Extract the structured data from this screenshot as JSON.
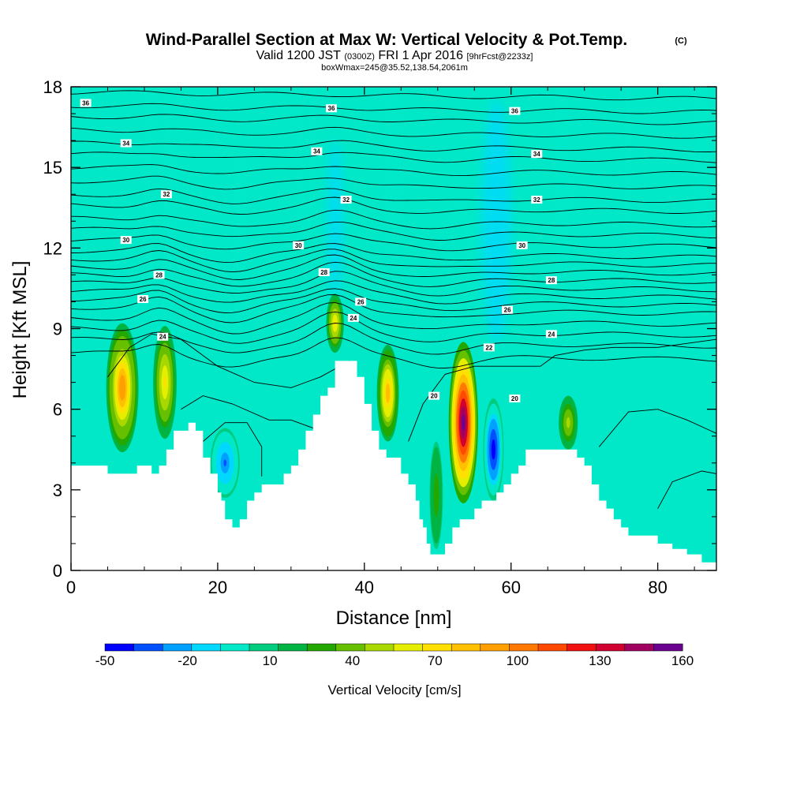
{
  "title": "Wind-Parallel Section at Max W: Vertical Velocity & Pot.Temp.",
  "title_mark": "(C)",
  "valid_main": "Valid 1200 JST",
  "valid_z": "(0300Z)",
  "valid_date": "FRI 1 Apr 2016",
  "valid_fcst": "[9hrFcst@2233z]",
  "subtitle2": "boxWmax=245@35.52,138.54,2061m",
  "colors": {
    "background_bin": "#00e8c8",
    "terrain": "#ffffff",
    "contour_line": "#000000"
  },
  "chart_data": {
    "type": "heatmap",
    "xlabel": "Distance [nm]",
    "ylabel": "Height [Kft MSL]",
    "xlim": [
      0,
      88
    ],
    "ylim": [
      0,
      18
    ],
    "x_ticks": [
      "0",
      "20",
      "40",
      "60",
      "80"
    ],
    "y_ticks": [
      "0",
      "3",
      "6",
      "9",
      "12",
      "15",
      "18"
    ],
    "colorbar": {
      "label": "Vertical Velocity [cm/s]",
      "tick_labels": [
        "-50",
        "-20",
        "10",
        "40",
        "70",
        "100",
        "130",
        "160"
      ],
      "bins": [
        "#0000ff",
        "#0050ff",
        "#00a0ff",
        "#00d8ff",
        "#00e8c8",
        "#00cc80",
        "#00b444",
        "#22a800",
        "#66c000",
        "#a8d800",
        "#e6ee00",
        "#ffe000",
        "#ffc000",
        "#ffa000",
        "#ff7800",
        "#ff4800",
        "#f01010",
        "#d00030",
        "#a00060",
        "#6a0090"
      ]
    },
    "terrain_height_kft": [
      [
        0,
        3.9
      ],
      [
        4,
        3.9
      ],
      [
        5,
        3.6
      ],
      [
        8,
        3.6
      ],
      [
        9,
        3.9
      ],
      [
        10,
        3.9
      ],
      [
        11,
        3.6
      ],
      [
        12,
        3.9
      ],
      [
        13,
        4.5
      ],
      [
        14,
        5.2
      ],
      [
        16,
        5.5
      ],
      [
        17,
        5.2
      ],
      [
        18,
        4.2
      ],
      [
        19,
        3.6
      ],
      [
        20,
        2.9
      ],
      [
        20.5,
        2.6
      ],
      [
        21,
        1.9
      ],
      [
        22,
        1.6
      ],
      [
        23,
        1.9
      ],
      [
        24,
        2.6
      ],
      [
        25,
        2.9
      ],
      [
        26,
        3.2
      ],
      [
        28,
        3.2
      ],
      [
        29,
        3.6
      ],
      [
        30,
        3.9
      ],
      [
        31,
        4.5
      ],
      [
        32,
        5.2
      ],
      [
        33,
        5.8
      ],
      [
        34,
        6.5
      ],
      [
        35,
        6.8
      ],
      [
        36,
        7.8
      ],
      [
        37,
        7.8
      ],
      [
        38,
        7.8
      ],
      [
        39,
        7.2
      ],
      [
        40,
        6.2
      ],
      [
        41,
        5.2
      ],
      [
        42,
        4.5
      ],
      [
        43,
        4.2
      ],
      [
        44,
        4.2
      ],
      [
        45,
        3.6
      ],
      [
        46,
        3.2
      ],
      [
        47,
        2.6
      ],
      [
        47.5,
        1.9
      ],
      [
        48,
        1.6
      ],
      [
        48.5,
        1.0
      ],
      [
        49,
        0.6
      ],
      [
        50,
        0.6
      ],
      [
        51,
        1.0
      ],
      [
        52,
        1.6
      ],
      [
        53,
        1.9
      ],
      [
        54,
        1.9
      ],
      [
        55,
        2.3
      ],
      [
        56,
        2.6
      ],
      [
        57,
        2.6
      ],
      [
        58,
        2.9
      ],
      [
        59,
        3.2
      ],
      [
        60,
        3.6
      ],
      [
        61,
        3.9
      ],
      [
        62,
        4.5
      ],
      [
        63,
        4.5
      ],
      [
        66,
        4.5
      ],
      [
        67,
        4.5
      ],
      [
        69,
        4.2
      ],
      [
        70,
        3.9
      ],
      [
        71,
        3.2
      ],
      [
        72,
        2.6
      ],
      [
        73,
        2.3
      ],
      [
        74,
        1.9
      ],
      [
        75,
        1.6
      ],
      [
        76,
        1.3
      ],
      [
        78,
        1.3
      ],
      [
        80,
        1.0
      ],
      [
        82,
        0.8
      ],
      [
        84,
        0.6
      ],
      [
        86,
        0.3
      ],
      [
        88,
        0.3
      ]
    ],
    "vertical_velocity_cells": [
      {
        "x": 7,
        "y": 6.8,
        "w": 2.2,
        "h": 2.4,
        "v": 95
      },
      {
        "x": 12.8,
        "y": 7.0,
        "w": 1.6,
        "h": 2.1,
        "v": 70
      },
      {
        "x": 36,
        "y": 9.2,
        "w": 1.2,
        "h": 1.1,
        "v": 70
      },
      {
        "x": 43.2,
        "y": 6.6,
        "w": 1.5,
        "h": 1.8,
        "v": 85
      },
      {
        "x": 53.5,
        "y": 5.5,
        "w": 2.0,
        "h": 3.0,
        "v": 160
      },
      {
        "x": 57.6,
        "y": 4.5,
        "w": 1.4,
        "h": 1.9,
        "v": -50
      },
      {
        "x": 67.8,
        "y": 5.5,
        "w": 1.3,
        "h": 1.0,
        "v": 50
      },
      {
        "x": 21,
        "y": 4.0,
        "w": 2.0,
        "h": 1.3,
        "v": -30
      },
      {
        "x": 49.8,
        "y": 2.8,
        "w": 0.9,
        "h": 2.0,
        "v": 30
      }
    ],
    "pot_temp_contour_labels": [
      {
        "x": 2,
        "y": 17.4,
        "label": "36"
      },
      {
        "x": 35.5,
        "y": 17.2,
        "label": "36"
      },
      {
        "x": 60.5,
        "y": 17.1,
        "label": "36"
      },
      {
        "x": 7.5,
        "y": 15.9,
        "label": "34"
      },
      {
        "x": 33.5,
        "y": 15.6,
        "label": "34"
      },
      {
        "x": 63.5,
        "y": 15.5,
        "label": "34"
      },
      {
        "x": 13,
        "y": 14.0,
        "label": "32"
      },
      {
        "x": 37.5,
        "y": 13.8,
        "label": "32"
      },
      {
        "x": 63.5,
        "y": 13.8,
        "label": "32"
      },
      {
        "x": 7.5,
        "y": 12.3,
        "label": "30"
      },
      {
        "x": 31,
        "y": 12.1,
        "label": "30"
      },
      {
        "x": 61.5,
        "y": 12.1,
        "label": "30"
      },
      {
        "x": 12,
        "y": 11.0,
        "label": "28"
      },
      {
        "x": 34.5,
        "y": 11.1,
        "label": "28"
      },
      {
        "x": 65.5,
        "y": 10.8,
        "label": "28"
      },
      {
        "x": 9.8,
        "y": 10.1,
        "label": "26"
      },
      {
        "x": 39.5,
        "y": 10.0,
        "label": "26"
      },
      {
        "x": 59.5,
        "y": 9.7,
        "label": "26"
      },
      {
        "x": 12.5,
        "y": 8.7,
        "label": "24"
      },
      {
        "x": 38.5,
        "y": 9.4,
        "label": "24"
      },
      {
        "x": 65.5,
        "y": 8.8,
        "label": "24"
      },
      {
        "x": 57,
        "y": 8.3,
        "label": "22"
      },
      {
        "x": 49.5,
        "y": 6.5,
        "label": "20"
      },
      {
        "x": 60.5,
        "y": 6.4,
        "label": "20"
      }
    ]
  }
}
